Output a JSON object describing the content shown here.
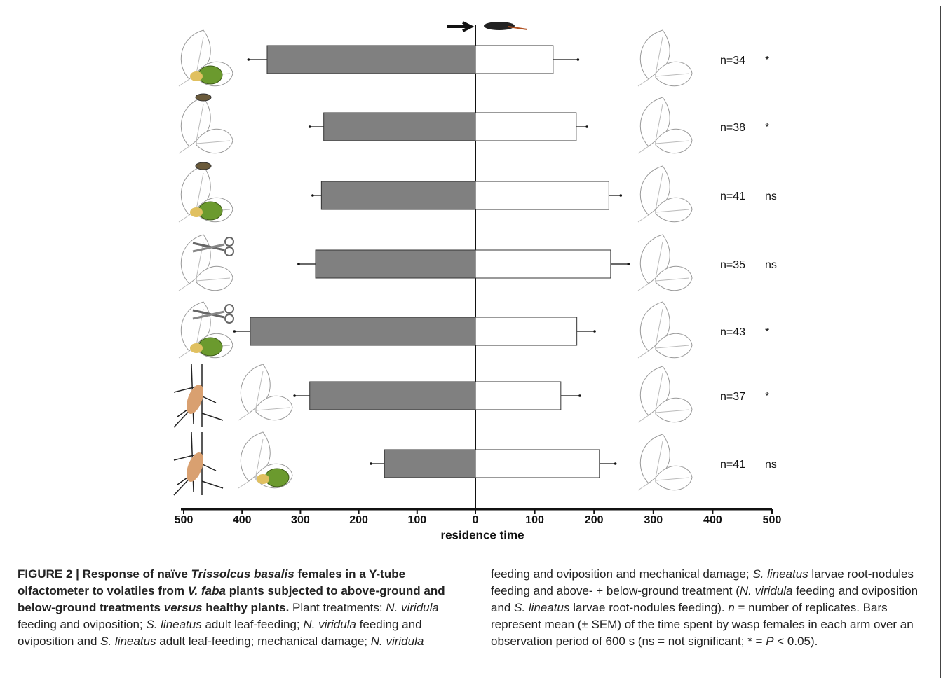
{
  "chart_data": [
    {
      "type": "hbar",
      "side": "left",
      "color": "#808080",
      "values": [
        357,
        260,
        264,
        274,
        386,
        284,
        156
      ],
      "errors": [
        32,
        24,
        15,
        29,
        27,
        26,
        23
      ],
      "xlim": [
        500,
        0
      ],
      "xticks": [
        500,
        400,
        300,
        200,
        100,
        0
      ],
      "xlabel": "residence time"
    },
    {
      "type": "hbar",
      "side": "right",
      "color": "#ffffff",
      "values": [
        131,
        170,
        225,
        228,
        171,
        144,
        209
      ],
      "errors": [
        42,
        18,
        20,
        30,
        30,
        32,
        27
      ],
      "xlim": [
        0,
        500
      ],
      "xticks": [
        100,
        200,
        300,
        400,
        500
      ],
      "n_labels": [
        "n=34",
        "n=38",
        "n=41",
        "n=35",
        "n=43",
        "n=37",
        "n=41"
      ],
      "significance": [
        "*",
        "*",
        "ns",
        "ns",
        "*",
        "*",
        "ns"
      ]
    }
  ],
  "caption": {
    "runs": [
      {
        "text": "FIGURE 2 | Response of naïve ",
        "style": "b"
      },
      {
        "text": "Trissolcus basalis",
        "style": "bi"
      },
      {
        "text": " females in a Y-tube olfactometer to volatiles from ",
        "style": "b"
      },
      {
        "text": "V. faba",
        "style": "bi"
      },
      {
        "text": " plants subjected to above-ground and below-ground treatments ",
        "style": "b"
      },
      {
        "text": "versus",
        "style": "bi"
      },
      {
        "text": " healthy plants.",
        "style": "b"
      },
      {
        "text": " Plant treatments: ",
        "style": "normal"
      },
      {
        "text": "N. viridula",
        "style": "i"
      },
      {
        "text": " feeding and oviposition; ",
        "style": "normal"
      },
      {
        "text": "S. lineatus",
        "style": "i"
      },
      {
        "text": " adult leaf-feeding; ",
        "style": "normal"
      },
      {
        "text": "N. viridula",
        "style": "i"
      },
      {
        "text": " feeding and oviposition and ",
        "style": "normal"
      },
      {
        "text": "S. lineatus",
        "style": "i"
      },
      {
        "text": " adult leaf-feeding; mechanical damage; ",
        "style": "normal"
      },
      {
        "text": "N. viridula",
        "style": "i"
      },
      {
        "text": " feeding and oviposition and mechanical damage; ",
        "style": "normal"
      },
      {
        "text": "S. lineatus",
        "style": "i"
      },
      {
        "text": " larvae root-nodules feeding and above- + below-ground treatment (",
        "style": "normal"
      },
      {
        "text": "N. viridula",
        "style": "i"
      },
      {
        "text": " feeding and oviposition and ",
        "style": "normal"
      },
      {
        "text": "S. lineatus",
        "style": "i"
      },
      {
        "text": " larvae root-nodules feeding). ",
        "style": "normal"
      },
      {
        "text": "n",
        "style": "i"
      },
      {
        "text": " = number of replicates. Bars represent mean (± SEM) of the time spent by wasp females in each arm over an observation period of 600 s (ns = not significant; * = ",
        "style": "normal"
      },
      {
        "text": "P",
        "style": "i"
      },
      {
        "text": " < 0.05).",
        "style": "normal"
      }
    ]
  }
}
